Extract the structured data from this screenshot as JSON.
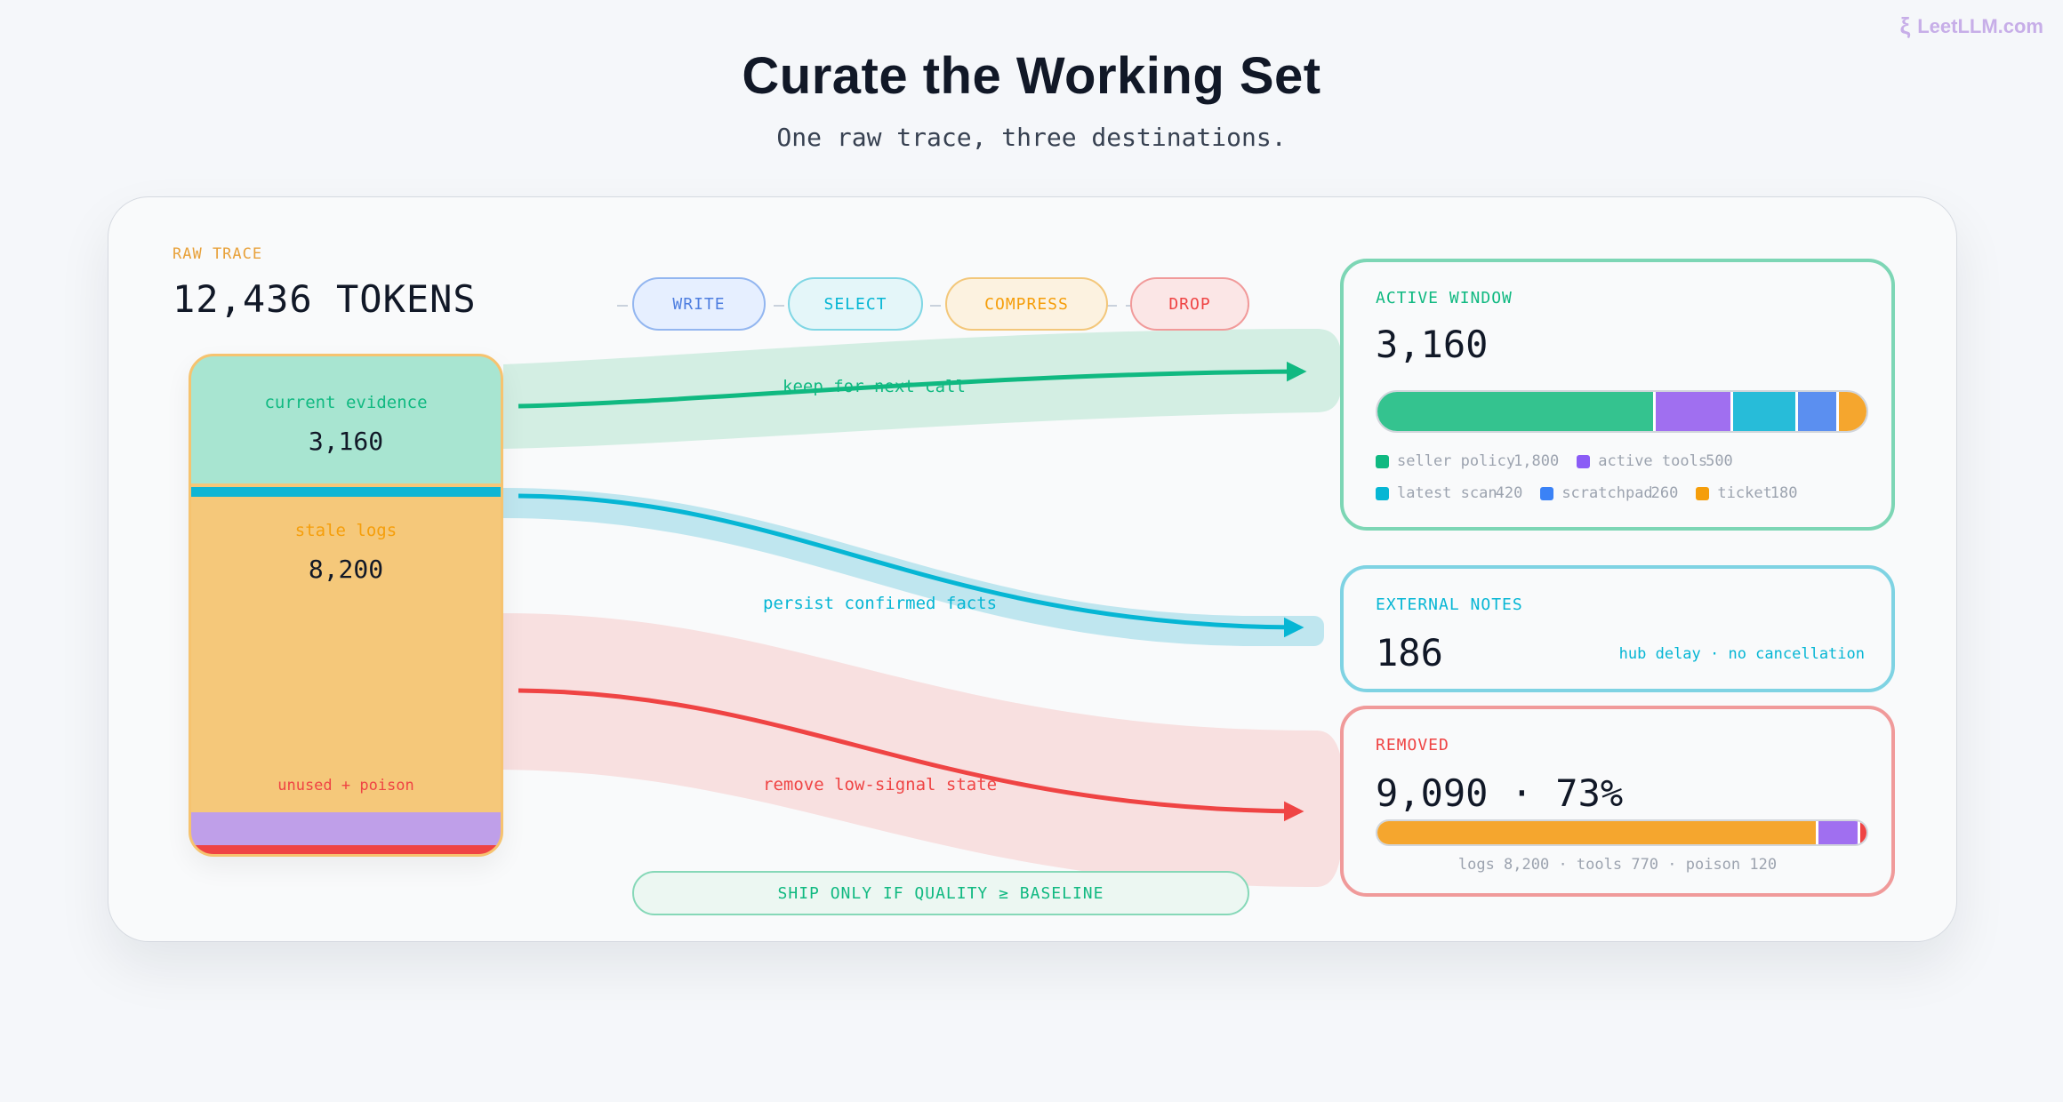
{
  "brand": {
    "text": "LeetLLM.com",
    "icon": "brain-icon"
  },
  "title": "Curate the Working Set",
  "subtitle": "One raw trace, three destinations.",
  "raw_trace": {
    "label": "RAW TRACE",
    "total": "12,436 TOKENS",
    "segments": [
      {
        "label": "current evidence",
        "value": "3,160",
        "color": "#a8e5d1",
        "text_color": "#10b981"
      },
      {
        "label": "stale logs",
        "value": "8,200",
        "color": "#f5c87a",
        "text_color": "#f59e0b"
      },
      {
        "label": "unused + poison",
        "color": "#bf9fe9",
        "text_color": "#ef4444"
      }
    ]
  },
  "operations": [
    {
      "label": "WRITE",
      "color": "#4f7fe0"
    },
    {
      "label": "SELECT",
      "color": "#06b6d4"
    },
    {
      "label": "COMPRESS",
      "color": "#f59e0b"
    },
    {
      "label": "DROP",
      "color": "#ef4444"
    }
  ],
  "flows": [
    {
      "caption": "keep for next call",
      "color": "#10b981"
    },
    {
      "caption": "persist confirmed facts",
      "color": "#06b6d4"
    },
    {
      "caption": "remove low-signal state",
      "color": "#ef4444"
    }
  ],
  "active_window": {
    "title": "ACTIVE WINDOW",
    "value": "3,160",
    "items": [
      {
        "label": "seller policy",
        "value": "1,800",
        "tokens": 1800,
        "color": "#34c38f"
      },
      {
        "label": "active tools",
        "value": "500",
        "tokens": 500,
        "color": "#a06ff0"
      },
      {
        "label": "latest scan",
        "value": "420",
        "tokens": 420,
        "color": "#27bcd9"
      },
      {
        "label": "scratchpad",
        "value": "260",
        "tokens": 260,
        "color": "#5b8ff0"
      },
      {
        "label": "ticket",
        "value": "180",
        "tokens": 180,
        "color": "#f5a62e"
      }
    ]
  },
  "external_notes": {
    "title": "EXTERNAL NOTES",
    "value": "186",
    "note": "hub delay · no cancellation"
  },
  "removed": {
    "title": "REMOVED",
    "value": "9,090 · 73%",
    "items": [
      {
        "label": "logs",
        "tokens": 8200,
        "color": "#f5a62e"
      },
      {
        "label": "tools",
        "tokens": 770,
        "color": "#a06ff0"
      },
      {
        "label": "poison",
        "tokens": 120,
        "color": "#ef4444"
      }
    ],
    "breakdown": "logs 8,200 · tools 770 · poison 120"
  },
  "gate": "SHIP ONLY IF QUALITY ≥ BASELINE"
}
